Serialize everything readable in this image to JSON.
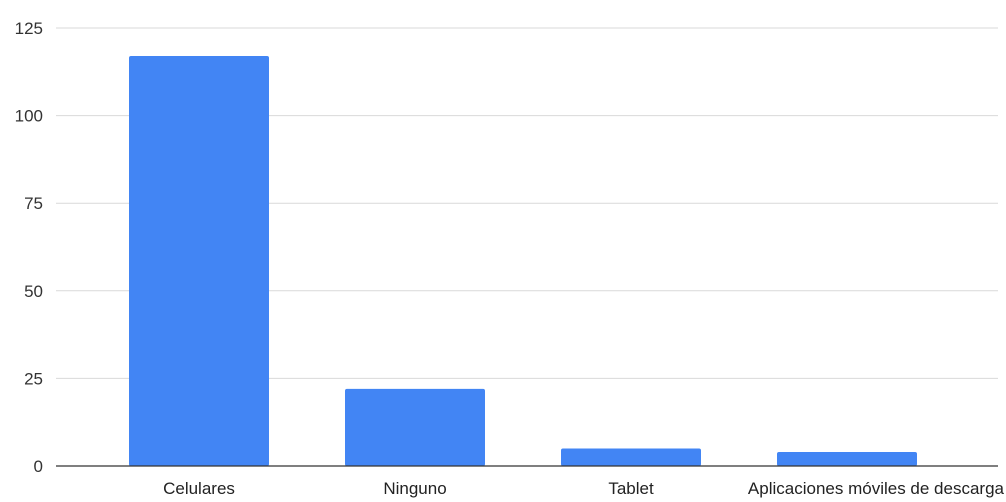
{
  "chart_data": {
    "type": "bar",
    "title": "",
    "xlabel": "",
    "ylabel": "",
    "categories": [
      "Celulares",
      "Ninguno",
      "Tablet",
      "Aplicaciones móviles de descarga"
    ],
    "values": [
      117,
      22,
      5,
      4
    ],
    "ylim": [
      0,
      125
    ],
    "yticks": [
      0,
      25,
      50,
      75,
      100,
      125
    ],
    "grid": true,
    "legend": "none",
    "bar_color": "#4285f4"
  }
}
